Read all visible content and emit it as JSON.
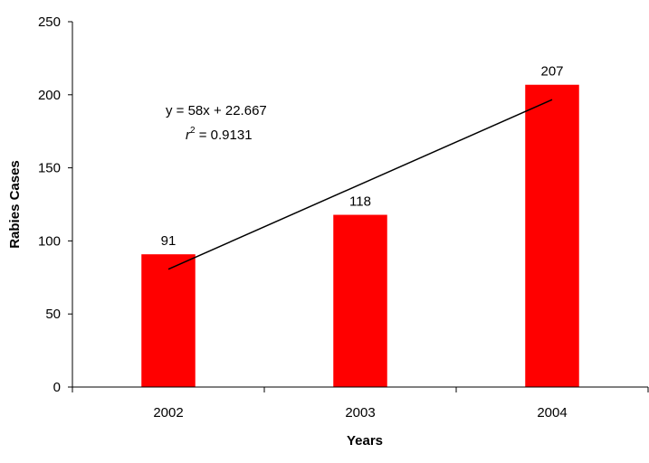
{
  "chart_data": {
    "type": "bar",
    "categories": [
      "2002",
      "2003",
      "2004"
    ],
    "values": [
      91,
      118,
      207
    ],
    "data_labels": [
      "91",
      "118",
      "207"
    ],
    "xlabel": "Years",
    "ylabel": "Rabies Cases",
    "ylim": [
      0,
      250
    ],
    "yticks": [
      "0",
      "50",
      "100",
      "150",
      "200",
      "250"
    ],
    "grid": false,
    "bar_color": "#ff0000",
    "trendline": {
      "type": "linear",
      "slope": 58,
      "intercept": 22.667,
      "equation_text": "y = 58x + 22.667",
      "r2_prefix": "r",
      "r2_sup": "2",
      "r2_suffix": " = 0.9131"
    }
  }
}
